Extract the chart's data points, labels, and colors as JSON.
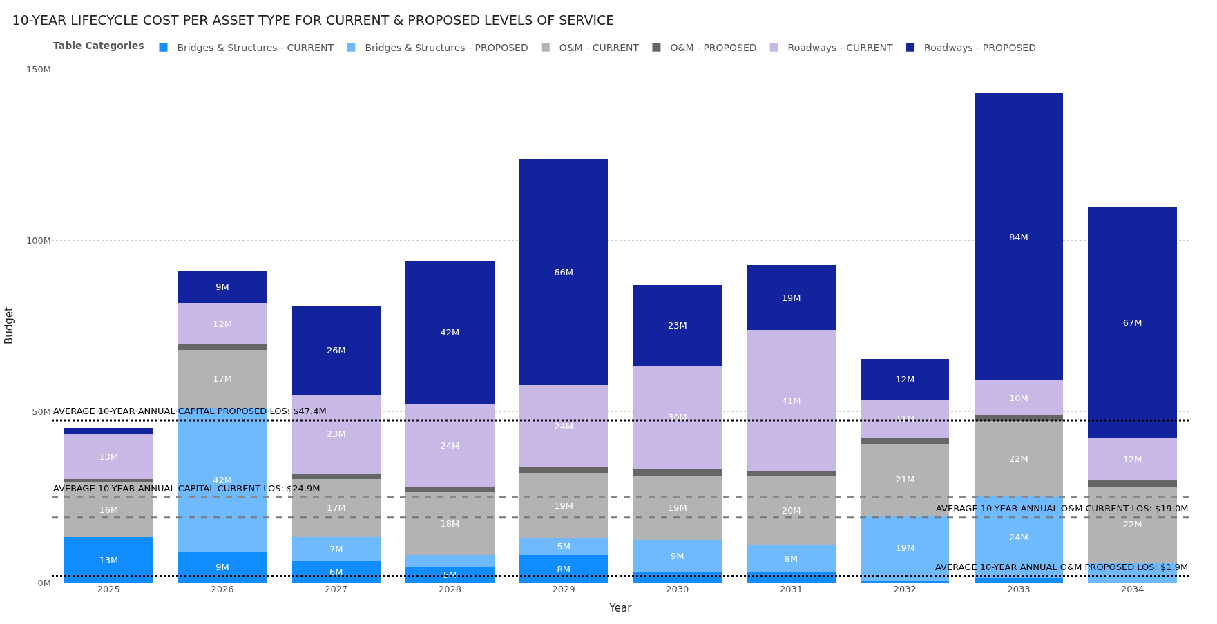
{
  "chart_data": {
    "type": "bar",
    "title": "10-YEAR LIFECYCLE COST PER ASSET TYPE FOR CURRENT & PROPOSED LEVELS OF SERVICE",
    "xlabel": "Year",
    "ylabel": "Budget",
    "legend_title": "Table Categories",
    "stacked": true,
    "categories": [
      "2025",
      "2026",
      "2027",
      "2028",
      "2029",
      "2030",
      "2031",
      "2032",
      "2033",
      "2034"
    ],
    "series": [
      {
        "name": "Bridges & Structures - CURRENT",
        "color": "#118dff",
        "values": [
          13.3,
          9,
          6.3,
          4.6,
          8,
          3.3,
          3,
          0.6,
          1.2,
          null
        ],
        "value_labels": [
          "13M",
          "9M",
          "6M",
          "5M",
          "8M",
          null,
          null,
          null,
          null,
          null
        ]
      },
      {
        "name": "Bridges & Structures - PROPOSED",
        "color": "#6fb9ff",
        "values": [
          0,
          42,
          7,
          3.4,
          5,
          9,
          8,
          19,
          24,
          5.8
        ],
        "value_labels": [
          null,
          "42M",
          "7M",
          null,
          "5M",
          "9M",
          "8M",
          "19M",
          "24M",
          null
        ]
      },
      {
        "name": "O&M - CURRENT",
        "color": "#b3b3b3",
        "values": [
          16,
          17,
          17,
          18.4,
          19,
          19,
          20,
          21,
          22,
          22.3
        ],
        "value_labels": [
          "16M",
          "17M",
          "17M",
          "18M",
          "19M",
          "19M",
          "20M",
          "21M",
          "22M",
          "22M"
        ]
      },
      {
        "name": "O&M - PROPOSED",
        "color": "#666666",
        "values": [
          1,
          1.6,
          1.6,
          1.6,
          1.7,
          1.7,
          1.7,
          1.8,
          1.8,
          1.8
        ],
        "value_labels": [
          null,
          null,
          null,
          null,
          null,
          null,
          null,
          null,
          null,
          null
        ]
      },
      {
        "name": "Roadways - CURRENT",
        "color": "#c8b8e6",
        "values": [
          13,
          12,
          23,
          24,
          24,
          30.4,
          41,
          11,
          10,
          12.3
        ],
        "value_labels": [
          "13M",
          "12M",
          "23M",
          "24M",
          "24M",
          "30M",
          "41M",
          "11M",
          "10M",
          "12M"
        ]
      },
      {
        "name": "Roadways - PROPOSED",
        "color": "#12239e",
        "values": [
          1.8,
          9.4,
          26,
          42,
          66,
          23.4,
          19,
          12,
          84,
          67.4
        ],
        "value_labels": [
          null,
          "9M",
          "26M",
          "42M",
          "66M",
          "23M",
          "19M",
          "12M",
          "84M",
          "67M"
        ]
      }
    ],
    "ylim": [
      0,
      150
    ],
    "yticks": [
      {
        "value": 0,
        "label": "0M"
      },
      {
        "value": 50,
        "label": "50M"
      },
      {
        "value": 100,
        "label": "100M"
      },
      {
        "value": 150,
        "label": "150M"
      }
    ],
    "grid": "y",
    "legend": "top",
    "ref_lines": [
      {
        "axis": "y",
        "value": 47.4,
        "label": "AVERAGE 10-YEAR ANNUAL CAPITAL PROPOSED LOS: $47.4M",
        "color": "#000000",
        "line_style": "dotted"
      },
      {
        "axis": "y",
        "value": 24.9,
        "label": "AVERAGE 10-YEAR ANNUAL CAPITAL CURRENT LOS: $24.9M",
        "color": "#888888",
        "line_style": "dashed"
      },
      {
        "axis": "y",
        "value": 19.0,
        "label": "AVERAGE 10-YEAR ANNUAL O&M CURRENT LOS: $19.0M",
        "color": "#777777",
        "line_style": "dashed"
      },
      {
        "axis": "y",
        "value": 1.9,
        "label": "AVERAGE 10-YEAR ANNUAL O&M PROPOSED LOS: $1.9M",
        "color": "#000000",
        "line_style": "dotted"
      }
    ]
  }
}
